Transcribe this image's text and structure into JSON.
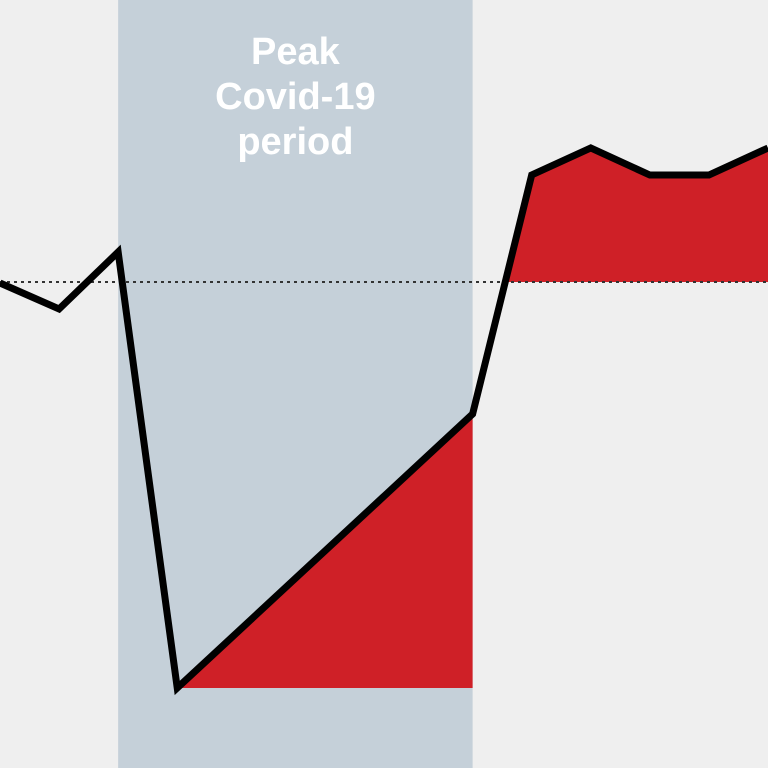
{
  "chart_data": {
    "type": "line",
    "x": [
      0,
      1,
      2,
      3,
      8,
      9,
      10,
      11,
      12,
      13
    ],
    "series": [
      {
        "color": "#000000",
        "values": [
          -1,
          -27,
          30,
          -406,
          -132,
          107,
          134,
          107,
          107,
          134
        ]
      }
    ],
    "xlim": [
      0,
      13
    ],
    "ylim": [
      -486,
      282
    ],
    "baseline": 0,
    "highlight": {
      "start": 2,
      "end": 8,
      "label": "Peak Covid-19 period",
      "color": "#c5d0d9"
    },
    "fill_color": "#cf2027",
    "background": "#efefef"
  }
}
